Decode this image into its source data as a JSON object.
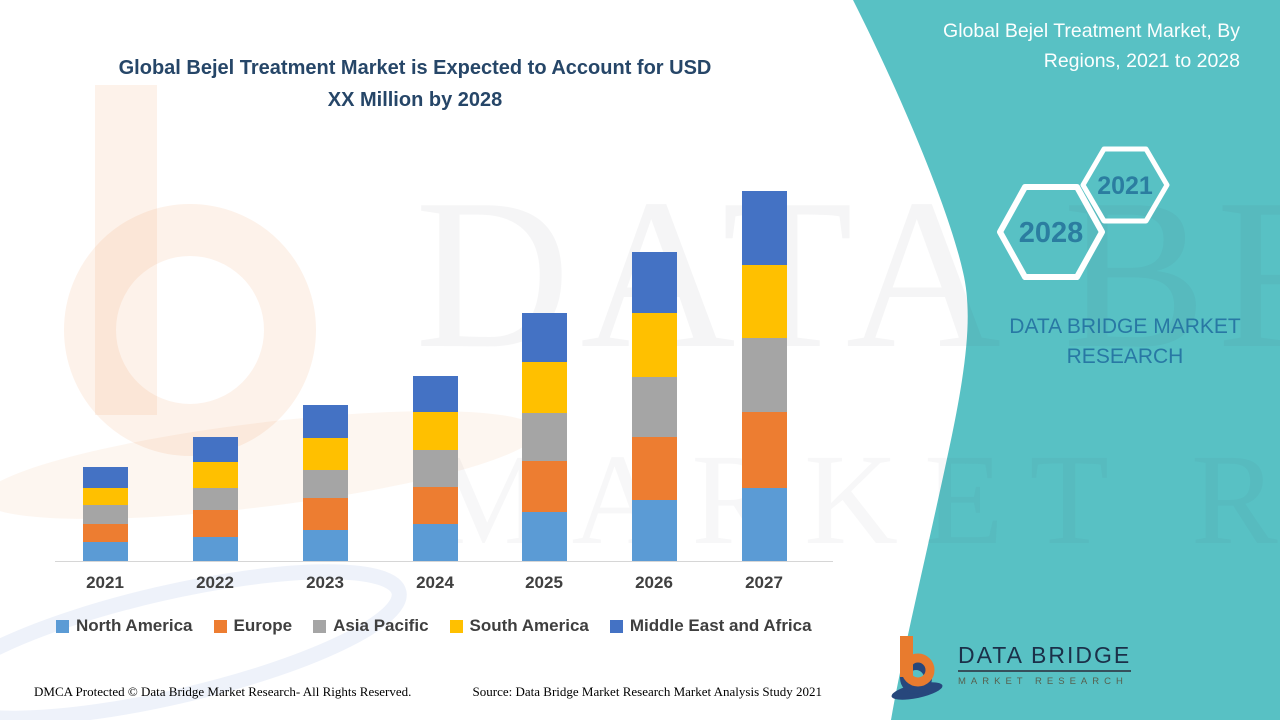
{
  "left_title": "Global Bejel Treatment Market is Expected to Account for USD XX Million by 2028",
  "right_panel": {
    "title": "Global Bejel Treatment Market, By Regions, 2021 to 2028",
    "hexagons": [
      {
        "label": "2028"
      },
      {
        "label": "2021"
      }
    ],
    "brand_text": "DATA BRIDGE MARKET RESEARCH",
    "logo": {
      "line1": "DATA BRIDGE",
      "line2": "MARKET RESEARCH"
    }
  },
  "watermark": {
    "text1": "DATA BRIDGE",
    "text2": "MARKET RESEARCH"
  },
  "footer": {
    "left": "DMCA Protected © Data Bridge Market Research- All Rights Reserved.",
    "right": "Source: Data Bridge Market Research Market Analysis Study 2021"
  },
  "colors": {
    "teal_panel": "#58c1c4",
    "title_navy": "#264668",
    "brand_blue": "#2878a4",
    "hex_number": "#2b7da0",
    "axis_text": "#404040",
    "logo_orange": "#e87b2e",
    "logo_navy": "#27477c"
  },
  "chart_data": {
    "type": "bar",
    "stacked": true,
    "title": "Global Bejel Treatment Market, By Regions, 2021 to 2028",
    "categories": [
      "2021",
      "2022",
      "2023",
      "2024",
      "2025",
      "2026",
      "2027"
    ],
    "series": [
      {
        "name": "North America",
        "color": "#5B9BD5",
        "values": [
          19,
          24,
          31,
          37,
          49,
          61,
          73
        ]
      },
      {
        "name": "Europe",
        "color": "#ED7D31",
        "values": [
          18,
          27,
          32,
          37,
          51,
          63,
          76
        ]
      },
      {
        "name": "Asia Pacific",
        "color": "#A5A5A5",
        "values": [
          19,
          22,
          28,
          37,
          48,
          60,
          74
        ]
      },
      {
        "name": "South America",
        "color": "#FFC000",
        "values": [
          17,
          26,
          32,
          38,
          51,
          64,
          73
        ]
      },
      {
        "name": "Middle East and Africa",
        "color": "#4472C4",
        "values": [
          21,
          25,
          33,
          36,
          49,
          61,
          74
        ]
      }
    ],
    "totals": [
      94,
      124,
      156,
      185,
      248,
      309,
      370
    ],
    "xlabel": "",
    "ylabel": "",
    "units": "relative estimated units (no y-axis values shown on chart)",
    "y_axis_shown": false,
    "grid": false,
    "legend_position": "bottom"
  }
}
